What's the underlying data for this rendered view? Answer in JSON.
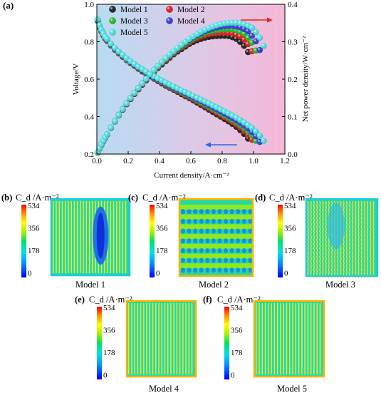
{
  "panel_a_label": "(a)",
  "colors": {
    "model1": "#1a1a1a",
    "model2": "#e01818",
    "model3": "#22bb22",
    "model4": "#2a3ad8",
    "model5": "#4fe0e0",
    "arrow_red": "#e0281e",
    "arrow_blue": "#2a6adc"
  },
  "legend": [
    "Model 1",
    "Model 2",
    "Model 3",
    "Model 4",
    "Model 5"
  ],
  "chart_data": [
    {
      "type": "scatter",
      "xlabel": "Current density/A·cm⁻²",
      "ylabel_left": "Voltage/V",
      "ylabel_right": "Net power density/W·cm⁻²",
      "xlim": [
        0.0,
        1.2
      ],
      "ylim_left": [
        0.2,
        1.0
      ],
      "ylim_right": [
        0.0,
        0.4
      ],
      "x_ticks": [
        "0.0",
        "0.2",
        "0.4",
        "0.6",
        "0.8",
        "1.0",
        "1.2"
      ],
      "y_left_ticks": [
        "0.2",
        "0.4",
        "0.6",
        "0.8",
        "1.0"
      ],
      "y_right_ticks": [
        "0.0",
        "0.1",
        "0.2",
        "0.3",
        "0.4"
      ],
      "background": "gradient blue (left) to pink (right)",
      "annotations": [
        "red arrow pointing right (power curves use right axis)",
        "blue arrow pointing left (voltage curves use left axis)"
      ],
      "series_meta": [
        {
          "name": "Model 1",
          "color": "#1a1a1a",
          "x_max": 0.98
        },
        {
          "name": "Model 2",
          "color": "#e01818",
          "x_max": 1.0
        },
        {
          "name": "Model 3",
          "color": "#22bb22",
          "x_max": 1.02
        },
        {
          "name": "Model 4",
          "color": "#2a3ad8",
          "x_max": 1.04
        },
        {
          "name": "Model 5",
          "color": "#4fe0e0",
          "x_max": 1.07
        }
      ],
      "voltage_series": [
        {
          "name": "Model 1",
          "x": [
            0.005,
            0.02,
            0.05,
            0.1,
            0.15,
            0.2,
            0.25,
            0.3,
            0.35,
            0.4,
            0.45,
            0.5,
            0.55,
            0.6,
            0.65,
            0.7,
            0.75,
            0.8,
            0.85,
            0.9,
            0.95,
            0.98
          ],
          "y": [
            0.91,
            0.87,
            0.82,
            0.77,
            0.73,
            0.695,
            0.665,
            0.635,
            0.61,
            0.585,
            0.56,
            0.54,
            0.515,
            0.495,
            0.47,
            0.445,
            0.42,
            0.395,
            0.37,
            0.34,
            0.3,
            0.265
          ]
        },
        {
          "name": "Model 5",
          "x": [
            0.005,
            0.02,
            0.05,
            0.1,
            0.15,
            0.2,
            0.25,
            0.3,
            0.35,
            0.4,
            0.45,
            0.5,
            0.55,
            0.6,
            0.65,
            0.7,
            0.75,
            0.8,
            0.85,
            0.9,
            0.95,
            1.0,
            1.05,
            1.07
          ],
          "y": [
            0.92,
            0.88,
            0.83,
            0.78,
            0.74,
            0.705,
            0.675,
            0.648,
            0.622,
            0.6,
            0.578,
            0.557,
            0.537,
            0.517,
            0.497,
            0.477,
            0.456,
            0.435,
            0.413,
            0.39,
            0.364,
            0.335,
            0.29,
            0.265
          ]
        }
      ],
      "power_series": [
        {
          "name": "Model 1",
          "x": [
            0.005,
            0.02,
            0.05,
            0.1,
            0.15,
            0.2,
            0.25,
            0.3,
            0.35,
            0.4,
            0.45,
            0.5,
            0.55,
            0.6,
            0.65,
            0.7,
            0.75,
            0.8,
            0.85,
            0.9,
            0.95,
            0.98
          ],
          "y": [
            0.004,
            0.017,
            0.041,
            0.077,
            0.11,
            0.139,
            0.166,
            0.19,
            0.214,
            0.234,
            0.252,
            0.27,
            0.283,
            0.297,
            0.306,
            0.312,
            0.315,
            0.316,
            0.315,
            0.306,
            0.285,
            0.26
          ]
        },
        {
          "name": "Model 5",
          "x": [
            0.005,
            0.02,
            0.05,
            0.1,
            0.15,
            0.2,
            0.25,
            0.3,
            0.35,
            0.4,
            0.45,
            0.5,
            0.55,
            0.6,
            0.65,
            0.7,
            0.75,
            0.8,
            0.85,
            0.9,
            0.95,
            1.0,
            1.05,
            1.07
          ],
          "y": [
            0.005,
            0.018,
            0.042,
            0.078,
            0.111,
            0.141,
            0.169,
            0.194,
            0.218,
            0.24,
            0.26,
            0.278,
            0.295,
            0.31,
            0.323,
            0.334,
            0.342,
            0.348,
            0.351,
            0.351,
            0.346,
            0.335,
            0.305,
            0.284
          ]
        }
      ]
    },
    {
      "type": "heatmap",
      "label": "(b)",
      "title": "Model 1",
      "colorbar_label": "C_d /A·m⁻²",
      "colorbar_ticks": [
        "534",
        "356",
        "178",
        "0"
      ],
      "pattern": "vertical stripes with low-current region in center-right"
    },
    {
      "type": "heatmap",
      "label": "(c)",
      "title": "Model 2",
      "colorbar_label": "C_d /A·m⁻²",
      "colorbar_ticks": [
        "534",
        "356",
        "178",
        "0"
      ],
      "pattern": "horizontal wavy bands"
    },
    {
      "type": "heatmap",
      "label": "(d)",
      "title": "Model 3",
      "colorbar_label": "C_d /A·m⁻²",
      "colorbar_ticks": [
        "534",
        "356",
        "178",
        "0"
      ],
      "pattern": "vertical wavy stripes with low region upper-middle"
    },
    {
      "type": "heatmap",
      "label": "(e)",
      "title": "Model 4",
      "colorbar_label": "C_d /A·m⁻²",
      "colorbar_ticks": [
        "534",
        "356",
        "178",
        "0"
      ],
      "pattern": "vertical stripes, orange border"
    },
    {
      "type": "heatmap",
      "label": "(f)",
      "title": "Model 5",
      "colorbar_label": "C_d /A·m⁻²",
      "colorbar_ticks": [
        "534",
        "356",
        "178",
        "0"
      ],
      "pattern": "vertical stripes, orange border"
    }
  ]
}
